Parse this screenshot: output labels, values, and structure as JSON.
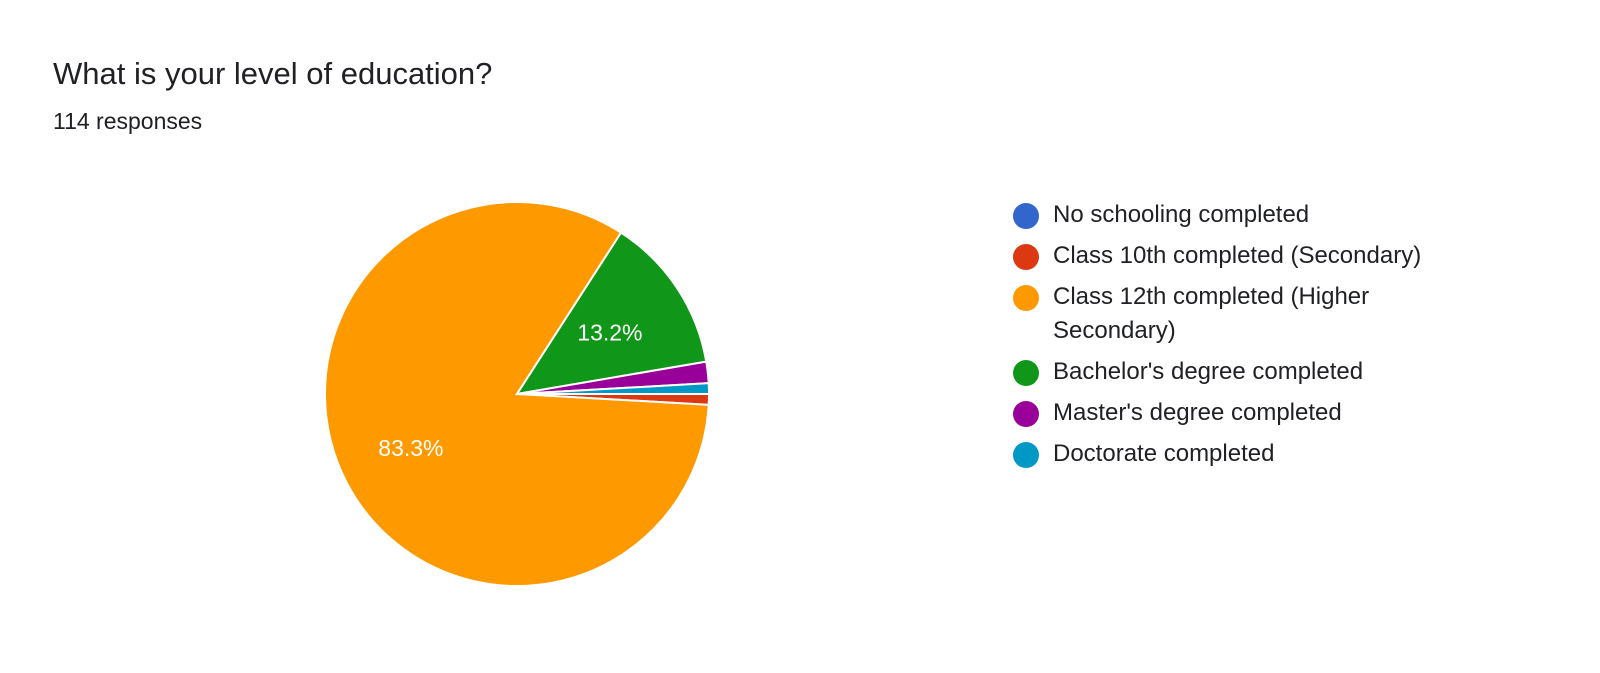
{
  "header": {
    "title": "What is your level of education?",
    "responses": "114 responses"
  },
  "chart_data": {
    "type": "pie",
    "title": "What is your level of education?",
    "subtitle": "114 responses",
    "legend_position": "right",
    "slices": [
      {
        "label": "No schooling completed",
        "value": 0.0,
        "color": "#3366cc",
        "display": ""
      },
      {
        "label": "Class 10th completed (Secondary)",
        "value": 0.9,
        "color": "#dc3912",
        "display": ""
      },
      {
        "label": "Class 12th completed (Higher Secondary)",
        "value": 83.3,
        "color": "#ff9900",
        "display": "83.3%"
      },
      {
        "label": "Bachelor's degree completed",
        "value": 13.2,
        "color": "#109618",
        "display": "13.2%"
      },
      {
        "label": "Master's degree completed",
        "value": 1.8,
        "color": "#990099",
        "display": ""
      },
      {
        "label": "Doctorate completed",
        "value": 0.9,
        "color": "#0099c6",
        "display": ""
      }
    ]
  },
  "legend": {
    "items": [
      {
        "label": "No schooling completed",
        "color": "#3366cc"
      },
      {
        "label": "Class 10th completed (Secondary)",
        "color": "#dc3912"
      },
      {
        "label": "Class 12th completed (Higher Secondary)",
        "color": "#ff9900"
      },
      {
        "label": "Bachelor's degree completed",
        "color": "#109618"
      },
      {
        "label": "Master's degree completed",
        "color": "#990099"
      },
      {
        "label": "Doctorate completed",
        "color": "#0099c6"
      }
    ]
  }
}
